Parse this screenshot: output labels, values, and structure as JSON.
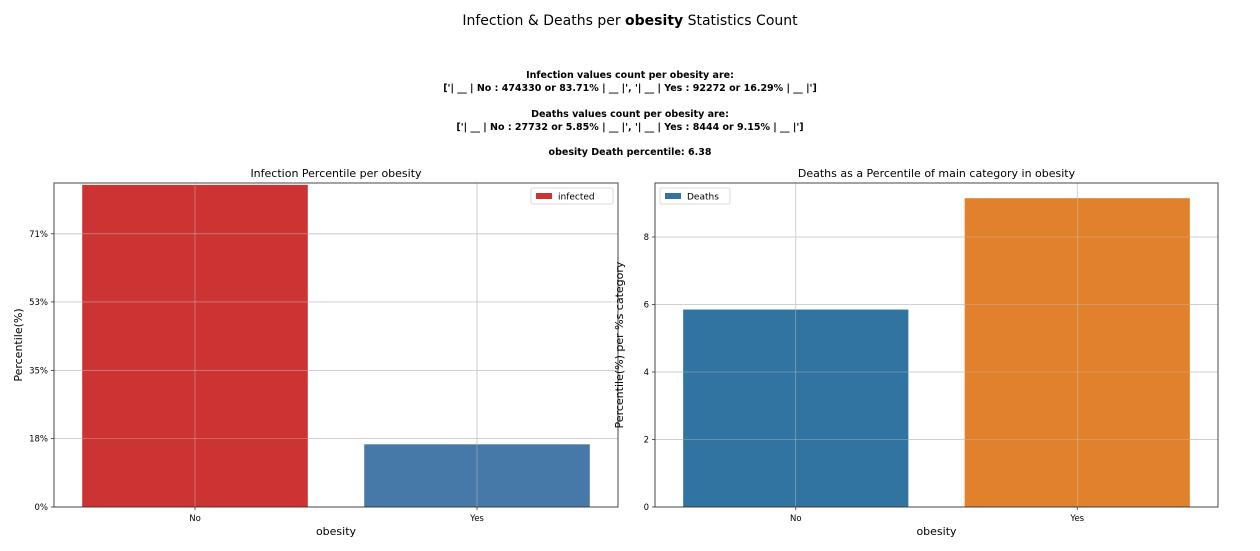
{
  "figure": {
    "title_pre": "Infection & Deaths per ",
    "title_bold": "obesity",
    "title_post": " Statistics Count",
    "infection_header": "Infection values count per obesity are:",
    "infection_line": "['| __ | No : 474330 or 83.71% | __ |', '| __ | Yes : 92272 or 16.29% | __ |']",
    "deaths_header": "Deaths values count per obesity are:",
    "deaths_line": "['| __ | No : 27732 or 5.85% | __ |', '| __ | Yes : 8444 or 9.15% | __ |']",
    "death_percentile": "obesity Death percentile: 6.38"
  },
  "chart_data": [
    {
      "type": "bar",
      "title": "Infection Percentile per obesity",
      "xlabel": "obesity",
      "ylabel": "Percentile(%)",
      "categories": [
        "No",
        "Yes"
      ],
      "values": [
        83.71,
        16.29
      ],
      "bar_colors": [
        "#cc3333",
        "#4679a8"
      ],
      "ylim": [
        0,
        84.2
      ],
      "yticks": [
        0,
        17.8,
        35.5,
        53.3,
        71.0
      ],
      "ytick_labels": [
        "0%",
        "18%",
        "35%",
        "53%",
        "71%"
      ],
      "grid": true,
      "legend": {
        "position": "top-right",
        "entries": [
          {
            "label": "infected",
            "color": "#cc3333"
          }
        ]
      }
    },
    {
      "type": "bar",
      "title": "Deaths as a Percentile of main category in obesity",
      "xlabel": "obesity",
      "ylabel": "Percentile(%) per %s category",
      "categories": [
        "No",
        "Yes"
      ],
      "values": [
        5.85,
        9.15
      ],
      "bar_colors": [
        "#3274a1",
        "#e1812c"
      ],
      "ylim": [
        0,
        9.6
      ],
      "yticks": [
        0,
        2,
        4,
        6,
        8
      ],
      "ytick_labels": [
        "0",
        "2",
        "4",
        "6",
        "8"
      ],
      "grid": true,
      "legend": {
        "position": "top-left",
        "entries": [
          {
            "label": "Deaths",
            "color": "#3274a1"
          }
        ]
      }
    }
  ]
}
